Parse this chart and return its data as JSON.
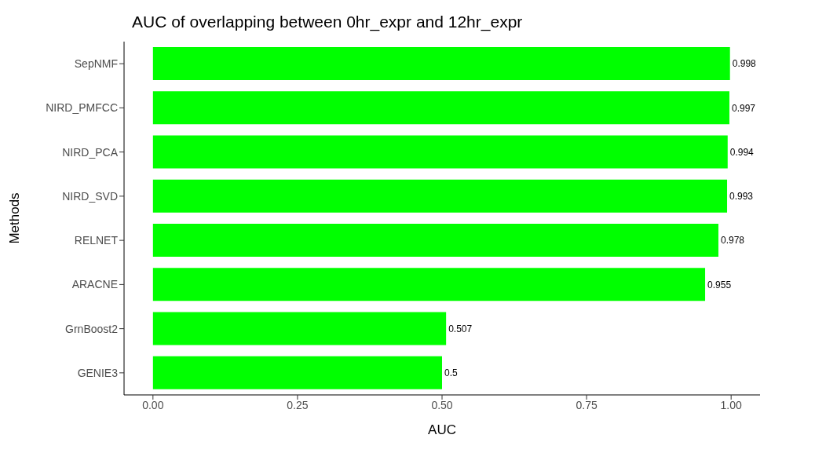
{
  "chart_data": {
    "type": "bar",
    "orientation": "horizontal",
    "title": "AUC of overlapping between 0hr_expr and 12hr_expr",
    "xlabel": "AUC",
    "ylabel": "Methods",
    "categories": [
      "SepNMF",
      "NIRD_PMFCC",
      "NIRD_PCA",
      "NIRD_SVD",
      "RELNET",
      "ARACNE",
      "GrnBoost2",
      "GENIE3"
    ],
    "values": [
      0.998,
      0.997,
      0.994,
      0.993,
      0.978,
      0.955,
      0.507,
      0.5
    ],
    "color": "#00ff00",
    "xlim": [
      -0.05,
      1.05
    ],
    "xticks": [
      {
        "value": 0,
        "label": "0.00"
      },
      {
        "value": 0.25,
        "label": "0.25"
      },
      {
        "value": 0.5,
        "label": "0.50"
      },
      {
        "value": 0.75,
        "label": "0.75"
      },
      {
        "value": 1,
        "label": "1.00"
      }
    ],
    "data_labels": true,
    "grid": false,
    "legend": false
  }
}
